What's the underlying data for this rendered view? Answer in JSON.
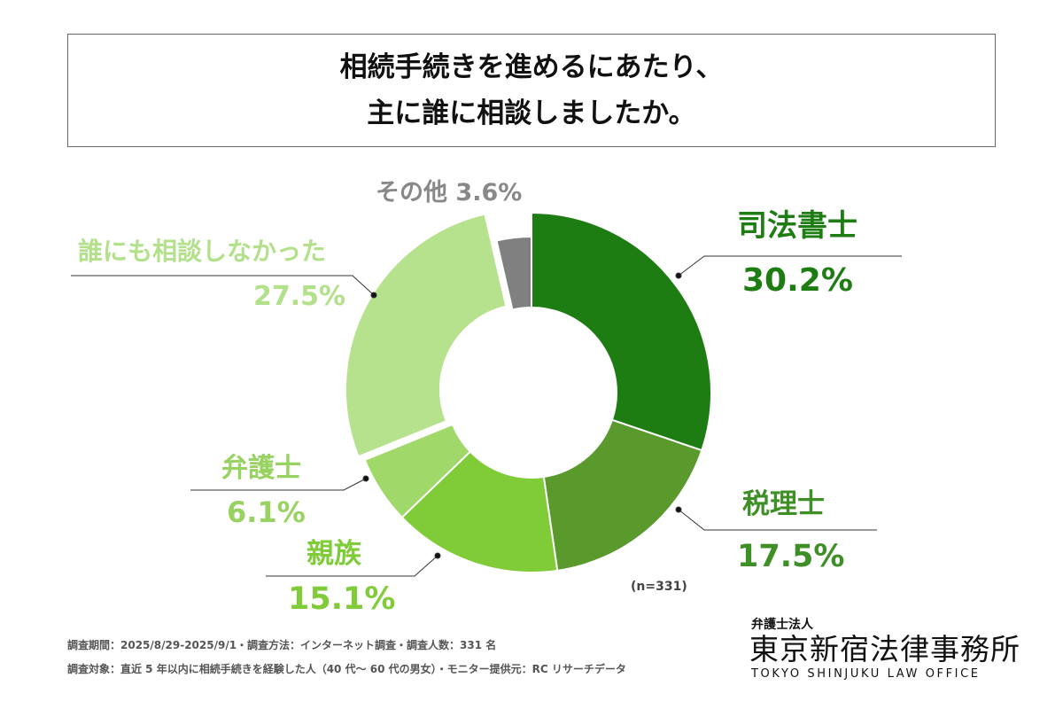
{
  "chart_data": {
    "type": "pie",
    "variant": "donut",
    "title": [
      "相続手続きを進めるにあたり、",
      "主に誰に相談しましたか。"
    ],
    "slices": [
      {
        "label": "司法書士",
        "value": 30.2,
        "display": "30.2%",
        "color": "#1e7d12",
        "label_color": "#1e7d12"
      },
      {
        "label": "税理士",
        "value": 17.5,
        "display": "17.5%",
        "color": "#5a9a2c",
        "label_color": "#3f8f27"
      },
      {
        "label": "親族",
        "value": 15.1,
        "display": "15.1%",
        "color": "#80cc38",
        "label_color": "#7fcb38"
      },
      {
        "label": "弁護士",
        "value": 6.1,
        "display": "6.1%",
        "color": "#a0d86a",
        "label_color": "#98d261"
      },
      {
        "label": "誰にも相談しなかった",
        "value": 27.5,
        "display": "27.5%",
        "color": "#b6e28e",
        "label_color": "#b3e08a"
      },
      {
        "label": "その他",
        "value": 3.6,
        "display": "3.6%",
        "color": "#808080",
        "label_color": "#888888"
      }
    ],
    "n_note": "(n=331)"
  },
  "footer": {
    "line1": "調査期間：2025/8/29-2025/9/1・調査方法：インターネット調査・調査人数：331 名",
    "line2": "調査対象：直近 5 年以内に相続手続きを経験した人（40 代〜 60 代の男女）・モニター提供元：RC リサーチデータ"
  },
  "logo": {
    "small": "弁護士法人",
    "main": "東京新宿法律事務所",
    "en": "TOKYO SHINJUKU LAW OFFICE"
  }
}
